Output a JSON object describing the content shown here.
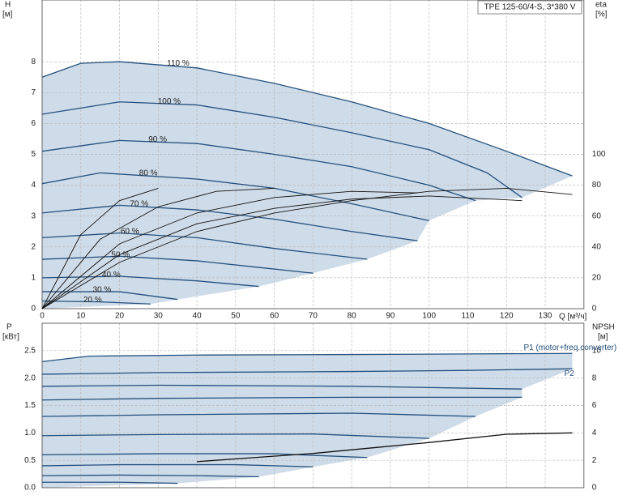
{
  "chart_data": [
    {
      "type": "line",
      "title": "TPE 125-60/4-S, 3*380 V",
      "y_label": "H",
      "y_unit": "[м]",
      "y2_label": "eta",
      "y2_unit": "[%]",
      "x_label": "Q [м³/ч]",
      "xlim": [
        0,
        140
      ],
      "xticks": [
        0,
        10,
        20,
        30,
        40,
        50,
        60,
        70,
        80,
        90,
        100,
        110,
        120,
        130
      ],
      "ylim": [
        0,
        10
      ],
      "yticks": [
        0,
        1,
        2,
        3,
        4,
        5,
        6,
        7,
        8
      ],
      "y2lim": [
        0,
        200
      ],
      "y2ticks": [
        0,
        20,
        40,
        60,
        80,
        100
      ],
      "grid": true,
      "color": "#24507d",
      "region_color": "#c9d7e6",
      "eta_color": "#111111",
      "series": [
        {
          "name": "110 %",
          "x": [
            0,
            10,
            20,
            40,
            60,
            80,
            100,
            120,
            137
          ],
          "values": [
            7.5,
            7.95,
            8.0,
            7.8,
            7.3,
            6.7,
            6.0,
            5.1,
            4.3
          ]
        },
        {
          "name": "100 %",
          "x": [
            0,
            20,
            40,
            60,
            80,
            100,
            115,
            124
          ],
          "values": [
            6.3,
            6.7,
            6.6,
            6.2,
            5.7,
            5.15,
            4.4,
            3.6
          ]
        },
        {
          "name": "90 %",
          "x": [
            0,
            20,
            40,
            60,
            80,
            100,
            112
          ],
          "values": [
            5.1,
            5.45,
            5.35,
            5.0,
            4.6,
            4.0,
            3.5
          ]
        },
        {
          "name": "80 %",
          "x": [
            0,
            15,
            40,
            60,
            80,
            100
          ],
          "values": [
            4.05,
            4.4,
            4.2,
            3.9,
            3.4,
            2.85
          ]
        },
        {
          "name": "70 %",
          "x": [
            0,
            20,
            40,
            60,
            80,
            97
          ],
          "values": [
            3.1,
            3.35,
            3.2,
            2.9,
            2.5,
            2.2
          ]
        },
        {
          "name": "60 %",
          "x": [
            0,
            20,
            40,
            60,
            84
          ],
          "values": [
            2.3,
            2.45,
            2.3,
            1.95,
            1.6
          ]
        },
        {
          "name": "50 %",
          "x": [
            0,
            20,
            40,
            55,
            70
          ],
          "values": [
            1.6,
            1.7,
            1.55,
            1.35,
            1.15
          ]
        },
        {
          "name": "40 %",
          "x": [
            0,
            20,
            40,
            56
          ],
          "values": [
            1.0,
            1.05,
            0.9,
            0.72
          ]
        },
        {
          "name": "30 %",
          "x": [
            0,
            20,
            35
          ],
          "values": [
            0.55,
            0.55,
            0.3
          ]
        },
        {
          "name": "20 %",
          "x": [
            0,
            15,
            28
          ],
          "values": [
            0.25,
            0.22,
            0.15
          ]
        }
      ],
      "eta_series": [
        {
          "x": [
            0,
            20,
            40,
            60,
            80,
            100,
            120,
            137
          ],
          "values": [
            0,
            30,
            50,
            62,
            70,
            76,
            78,
            74
          ]
        },
        {
          "x": [
            0,
            20,
            40,
            60,
            80,
            100,
            124
          ],
          "values": [
            0,
            35,
            55,
            65,
            71,
            73,
            70
          ]
        },
        {
          "x": [
            0,
            20,
            40,
            60,
            80,
            97
          ],
          "values": [
            0,
            42,
            62,
            72,
            76,
            75
          ]
        },
        {
          "x": [
            0,
            15,
            30,
            45,
            60
          ],
          "values": [
            0,
            45,
            66,
            76,
            78
          ]
        },
        {
          "x": [
            0,
            10,
            20,
            30
          ],
          "values": [
            0,
            48,
            70,
            78
          ]
        }
      ]
    },
    {
      "type": "line",
      "y_label": "P",
      "y_unit": "[кВт]",
      "y2_label": "NPSH",
      "y2_unit": "[м]",
      "xlim": [
        0,
        140
      ],
      "xticks": [
        0,
        10,
        20,
        30,
        40,
        50,
        60,
        70,
        80,
        90,
        100,
        110,
        120,
        130
      ],
      "ylim": [
        0,
        3
      ],
      "yticks": [
        {
          "value": 0,
          "label": "0.0"
        },
        0.5,
        {
          "value": 1,
          "label": "1.0"
        },
        1.5,
        {
          "value": 2,
          "label": "2.0"
        },
        2.5
      ],
      "y2lim": [
        0,
        12
      ],
      "y2ticks": [
        0,
        2,
        4,
        6,
        8,
        10
      ],
      "grid": true,
      "color": "#24507d",
      "region_color": "#c9d7e6",
      "npsh_color": "#111111",
      "series": [
        {
          "name": "P1 (motor+freq.converter)",
          "x": [
            0,
            12,
            40,
            80,
            110,
            137
          ],
          "values": [
            2.3,
            2.4,
            2.42,
            2.43,
            2.44,
            2.45
          ]
        },
        {
          "name": "P2",
          "x": [
            0,
            30,
            80,
            110,
            137
          ],
          "values": [
            2.07,
            2.1,
            2.12,
            2.14,
            2.17
          ]
        },
        {
          "x": [
            0,
            30,
            80,
            124
          ],
          "values": [
            1.85,
            1.87,
            1.85,
            1.8
          ]
        },
        {
          "x": [
            0,
            30,
            80,
            124
          ],
          "values": [
            1.6,
            1.63,
            1.65,
            1.65
          ]
        },
        {
          "x": [
            0,
            30,
            80,
            112
          ],
          "values": [
            1.3,
            1.33,
            1.36,
            1.3
          ]
        },
        {
          "x": [
            0,
            30,
            70,
            100
          ],
          "values": [
            0.95,
            0.97,
            0.98,
            0.9
          ]
        },
        {
          "x": [
            0,
            30,
            60,
            84
          ],
          "values": [
            0.6,
            0.62,
            0.62,
            0.55
          ]
        },
        {
          "x": [
            0,
            20,
            50,
            70
          ],
          "values": [
            0.4,
            0.42,
            0.42,
            0.38
          ]
        },
        {
          "x": [
            0,
            20,
            40,
            56
          ],
          "values": [
            0.22,
            0.23,
            0.22,
            0.2
          ]
        },
        {
          "x": [
            0,
            20,
            35
          ],
          "values": [
            0.1,
            0.1,
            0.08
          ]
        }
      ],
      "npsh_series": [
        {
          "x": [
            40,
            55,
            70,
            85,
            100,
            120,
            137
          ],
          "values": [
            1.9,
            2.2,
            2.5,
            2.9,
            3.3,
            3.9,
            4.0
          ]
        }
      ]
    }
  ]
}
